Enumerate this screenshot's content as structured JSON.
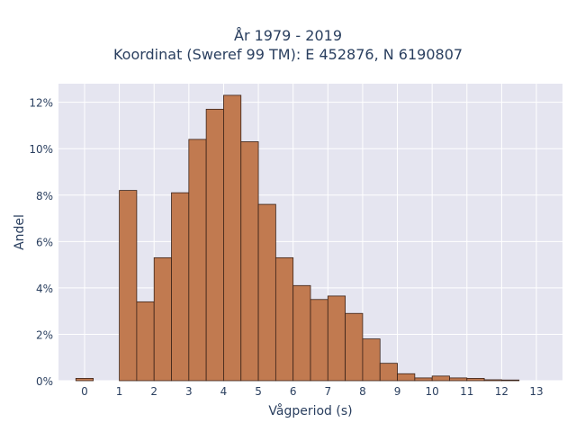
{
  "chart_data": {
    "type": "bar",
    "title": "År 1979 - 2019",
    "subtitle": "Koordinat (Sweref 99 TM): E 452876, N 6190807",
    "xlabel": "Vågperiod (s)",
    "ylabel": "Andel",
    "xlim": [
      -0.75,
      13.75
    ],
    "ylim": [
      0,
      12.8
    ],
    "y_unit": "%",
    "x_ticks": [
      0,
      1,
      2,
      3,
      4,
      5,
      6,
      7,
      8,
      9,
      10,
      11,
      12,
      13
    ],
    "y_ticks": [
      0,
      2,
      4,
      6,
      8,
      10,
      12
    ],
    "y_tick_labels": [
      "0%",
      "2%",
      "4%",
      "6%",
      "8%",
      "10%",
      "12%"
    ],
    "bin_width": 0.5,
    "bins": [
      {
        "x0": -0.25,
        "value": 0.1
      },
      {
        "x0": 0.25,
        "value": 0.0
      },
      {
        "x0": 0.75,
        "value": 0.0
      },
      {
        "x0": 1.0,
        "value": 8.2
      },
      {
        "x0": 1.5,
        "value": 3.4
      },
      {
        "x0": 2.0,
        "value": 5.3
      },
      {
        "x0": 2.5,
        "value": 8.1
      },
      {
        "x0": 3.0,
        "value": 10.4
      },
      {
        "x0": 3.5,
        "value": 11.7
      },
      {
        "x0": 4.0,
        "value": 12.3
      },
      {
        "x0": 4.5,
        "value": 10.3
      },
      {
        "x0": 5.0,
        "value": 7.6
      },
      {
        "x0": 5.5,
        "value": 5.3
      },
      {
        "x0": 6.0,
        "value": 4.1
      },
      {
        "x0": 6.5,
        "value": 3.5
      },
      {
        "x0": 7.0,
        "value": 3.65
      },
      {
        "x0": 7.5,
        "value": 2.9
      },
      {
        "x0": 8.0,
        "value": 1.8
      },
      {
        "x0": 8.5,
        "value": 0.75
      },
      {
        "x0": 9.0,
        "value": 0.3
      },
      {
        "x0": 9.5,
        "value": 0.12
      },
      {
        "x0": 10.0,
        "value": 0.2
      },
      {
        "x0": 10.5,
        "value": 0.12
      },
      {
        "x0": 11.0,
        "value": 0.1
      },
      {
        "x0": 11.5,
        "value": 0.04
      },
      {
        "x0": 12.0,
        "value": 0.03
      }
    ],
    "grid": true,
    "colors": {
      "bar_fill": "#c17a50",
      "bar_stroke": "#3a2218",
      "plot_background": "#e5e5f0",
      "grid": "#ffffff"
    }
  }
}
